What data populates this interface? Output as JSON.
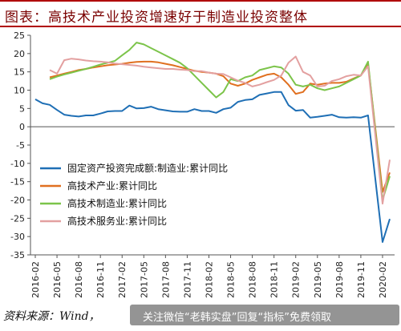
{
  "title": "图表：高技术产业投资增速好于制造业投资整体",
  "source": "资料来源：Wind，",
  "watermark": "关注微信“老韩实盘”回复“指标”免费领取",
  "chart_data": {
    "type": "line",
    "ylim": [
      -35,
      25
    ],
    "yticks": [
      -35,
      -30,
      -25,
      -20,
      -15,
      -10,
      -5,
      0,
      5,
      10,
      15,
      20,
      25
    ],
    "x": [
      "2016-02",
      "2016-03",
      "2016-04",
      "2016-05",
      "2016-06",
      "2016-07",
      "2016-08",
      "2016-09",
      "2016-10",
      "2016-11",
      "2016-12",
      "2017-01",
      "2017-02",
      "2017-03",
      "2017-04",
      "2017-05",
      "2017-06",
      "2017-07",
      "2017-08",
      "2017-09",
      "2017-10",
      "2017-11",
      "2017-12",
      "2018-01",
      "2018-02",
      "2018-03",
      "2018-04",
      "2018-05",
      "2018-06",
      "2018-07",
      "2018-08",
      "2018-09",
      "2018-10",
      "2018-11",
      "2018-12",
      "2019-01",
      "2019-02",
      "2019-03",
      "2019-04",
      "2019-05",
      "2019-06",
      "2019-07",
      "2019-08",
      "2019-09",
      "2019-10",
      "2019-11",
      "2019-12",
      "2020-01",
      "2020-02",
      "2020-03"
    ],
    "xtick_labels": [
      "2016-02",
      "2016-05",
      "2016-08",
      "2016-11",
      "2017-02",
      "2017-05",
      "2017-08",
      "2017-11",
      "2018-02",
      "2018-05",
      "2018-08",
      "2018-11",
      "2019-02",
      "2019-05",
      "2019-08",
      "2019-11",
      "2020-02"
    ],
    "grid": false,
    "legend_position": "lower-left",
    "series": [
      {
        "name": "固定资产投资完成额:制造业:累计同比",
        "color": "#1f6fb5",
        "values": [
          7.5,
          6.4,
          6.0,
          4.6,
          3.3,
          3.0,
          2.8,
          3.1,
          3.1,
          3.6,
          4.2,
          4.3,
          4.3,
          5.8,
          5.0,
          5.1,
          5.5,
          4.8,
          4.5,
          4.2,
          4.1,
          4.1,
          4.8,
          4.3,
          4.3,
          3.8,
          4.8,
          5.2,
          6.8,
          7.3,
          7.5,
          8.7,
          9.1,
          9.5,
          9.5,
          5.9,
          4.4,
          4.6,
          2.5,
          2.7,
          3.0,
          3.3,
          2.6,
          2.5,
          2.6,
          2.5,
          3.1,
          null,
          -31.5,
          -25.2
        ]
      },
      {
        "name": "高技术产业:累计同比",
        "color": "#e07020",
        "values": [
          null,
          null,
          13.5,
          14.0,
          14.5,
          15.0,
          15.5,
          15.8,
          16.2,
          16.5,
          16.8,
          17.0,
          17.2,
          17.5,
          17.7,
          17.8,
          17.8,
          17.6,
          17.2,
          16.8,
          16.3,
          15.8,
          15.3,
          15.0,
          14.8,
          14.5,
          13.8,
          11.8,
          11.2,
          11.8,
          12.8,
          13.5,
          14.2,
          14.5,
          13.5,
          11.5,
          9.0,
          9.5,
          11.8,
          11.5,
          11.8,
          12.0,
          12.0,
          12.3,
          13.2,
          14.0,
          17.2,
          null,
          -17.8,
          -12.5
        ]
      },
      {
        "name": "高技术制造业:累计同比",
        "color": "#7cc44a",
        "values": [
          null,
          null,
          13.0,
          13.7,
          14.3,
          14.8,
          15.3,
          15.8,
          16.4,
          17.0,
          17.5,
          18.0,
          19.5,
          21.0,
          23.0,
          22.5,
          21.5,
          20.5,
          19.5,
          18.5,
          17.5,
          16.0,
          14.0,
          12.0,
          10.0,
          8.0,
          9.5,
          13.0,
          12.5,
          13.5,
          14.0,
          15.5,
          16.0,
          16.5,
          16.2,
          14.5,
          11.5,
          11.0,
          11.5,
          10.5,
          10.0,
          10.5,
          11.0,
          12.0,
          13.0,
          14.0,
          17.8,
          null,
          -20.0,
          -13.5
        ]
      },
      {
        "name": "高技术服务业:累计同比",
        "color": "#e3a0a0",
        "values": [
          null,
          null,
          15.5,
          14.5,
          18.2,
          18.6,
          18.4,
          18.1,
          17.9,
          17.8,
          17.6,
          17.3,
          17.1,
          16.9,
          16.7,
          16.4,
          16.2,
          16.0,
          15.8,
          15.8,
          15.6,
          15.5,
          15.2,
          15.2,
          14.8,
          14.5,
          14.4,
          13.5,
          12.6,
          12.0,
          11.0,
          11.5,
          12.2,
          12.8,
          14.0,
          17.5,
          19.2,
          15.0,
          14.0,
          11.0,
          11.2,
          12.5,
          13.0,
          13.8,
          14.2,
          14.0,
          16.5,
          null,
          -21.0,
          -9.0
        ]
      }
    ]
  }
}
